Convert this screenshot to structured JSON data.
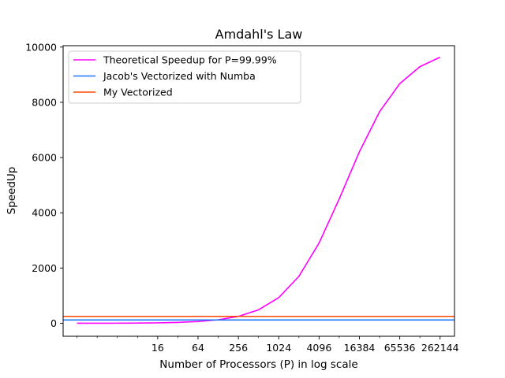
{
  "chart_data": {
    "type": "line",
    "title": "Amdahl's Law",
    "xlabel": "Number of Processors (P) in log scale",
    "ylabel": "SpeedUp",
    "x_scale": "log2",
    "xlim": [
      0.62,
      430000
    ],
    "ylim": [
      -470,
      10050
    ],
    "xticks": [
      {
        "value": 16,
        "label": "16"
      },
      {
        "value": 64,
        "label": "64"
      },
      {
        "value": 256,
        "label": "256"
      },
      {
        "value": 1024,
        "label": "1024"
      },
      {
        "value": 4096,
        "label": "4096"
      },
      {
        "value": 16384,
        "label": "16384"
      },
      {
        "value": 65536,
        "label": "65536"
      },
      {
        "value": 262144,
        "label": "262144"
      }
    ],
    "yticks": [
      0,
      2000,
      4000,
      6000,
      8000,
      10000
    ],
    "grid": false,
    "legend_position": "top-left",
    "series": [
      {
        "name": "Theoretical Speedup for P=99.99%",
        "color": "#ff00ff",
        "x": [
          1,
          2,
          4,
          8,
          16,
          32,
          64,
          128,
          256,
          512,
          1024,
          2048,
          4096,
          8192,
          16384,
          32768,
          65536,
          131072,
          262144
        ],
        "y": [
          1,
          2,
          4,
          8,
          16,
          32,
          63.6,
          126.4,
          249.6,
          487,
          930,
          1700,
          2906,
          4505,
          6210,
          7662,
          8676,
          9292,
          9633
        ]
      },
      {
        "name": "Jacob's Vectorized with Numba",
        "color": "#1f77ff",
        "x": [
          0.62,
          430000
        ],
        "y": [
          120,
          120
        ]
      },
      {
        "name": "My Vectorized",
        "color": "#ff4500",
        "x": [
          0.62,
          430000
        ],
        "y": [
          250,
          250
        ]
      }
    ]
  }
}
